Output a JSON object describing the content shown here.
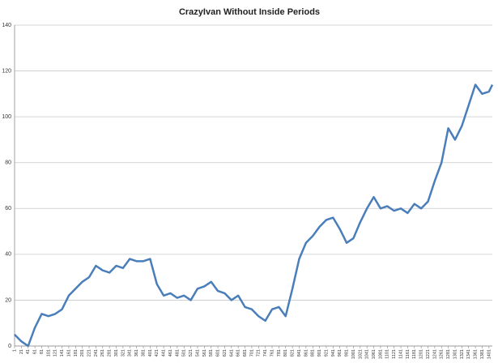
{
  "chart_data": {
    "type": "line",
    "title": "CrazyIvan Without Inside Periods",
    "x": [
      1,
      21,
      41,
      61,
      81,
      101,
      121,
      141,
      161,
      181,
      201,
      221,
      241,
      261,
      281,
      301,
      321,
      341,
      361,
      381,
      401,
      421,
      441,
      461,
      481,
      501,
      521,
      541,
      561,
      581,
      601,
      621,
      641,
      661,
      681,
      701,
      721,
      741,
      761,
      781,
      801,
      821,
      841,
      861,
      881,
      901,
      921,
      941,
      961,
      981,
      1001,
      1021,
      1041,
      1061,
      1081,
      1101,
      1121,
      1141,
      1161,
      1181,
      1201,
      1221,
      1241,
      1261,
      1281,
      1301,
      1321,
      1341,
      1361,
      1381,
      1401,
      1411
    ],
    "values": [
      5,
      2,
      0,
      8,
      14,
      13,
      14,
      16,
      22,
      25,
      28,
      30,
      35,
      33,
      32,
      35,
      34,
      38,
      37,
      37,
      38,
      27,
      22,
      23,
      21,
      22,
      20,
      25,
      26,
      28,
      24,
      23,
      20,
      22,
      17,
      16,
      13,
      11,
      16,
      17,
      13,
      25,
      38,
      45,
      48,
      52,
      55,
      56,
      51,
      45,
      47,
      54,
      60,
      65,
      60,
      61,
      59,
      60,
      58,
      62,
      60,
      63,
      72,
      80,
      95,
      90,
      96,
      105,
      114,
      110,
      111,
      114
    ],
    "color": "#4a7ebb",
    "xlim": [
      1,
      1411
    ],
    "xticks": [
      1,
      21,
      41,
      61,
      81,
      101,
      121,
      141,
      161,
      181,
      201,
      221,
      241,
      261,
      281,
      301,
      321,
      341,
      361,
      381,
      401,
      421,
      441,
      461,
      481,
      501,
      521,
      541,
      561,
      581,
      601,
      621,
      641,
      661,
      681,
      701,
      721,
      741,
      761,
      781,
      801,
      821,
      841,
      861,
      881,
      901,
      921,
      941,
      961,
      981,
      1001,
      1021,
      1041,
      1061,
      1081,
      1101,
      1121,
      1141,
      1161,
      1181,
      1201,
      1221,
      1241,
      1261,
      1281,
      1301,
      1321,
      1341,
      1361,
      1381,
      1401
    ],
    "ylim": [
      0,
      140
    ],
    "yticks": [
      0,
      20,
      40,
      60,
      80,
      100,
      120,
      140
    ],
    "grid": true
  }
}
